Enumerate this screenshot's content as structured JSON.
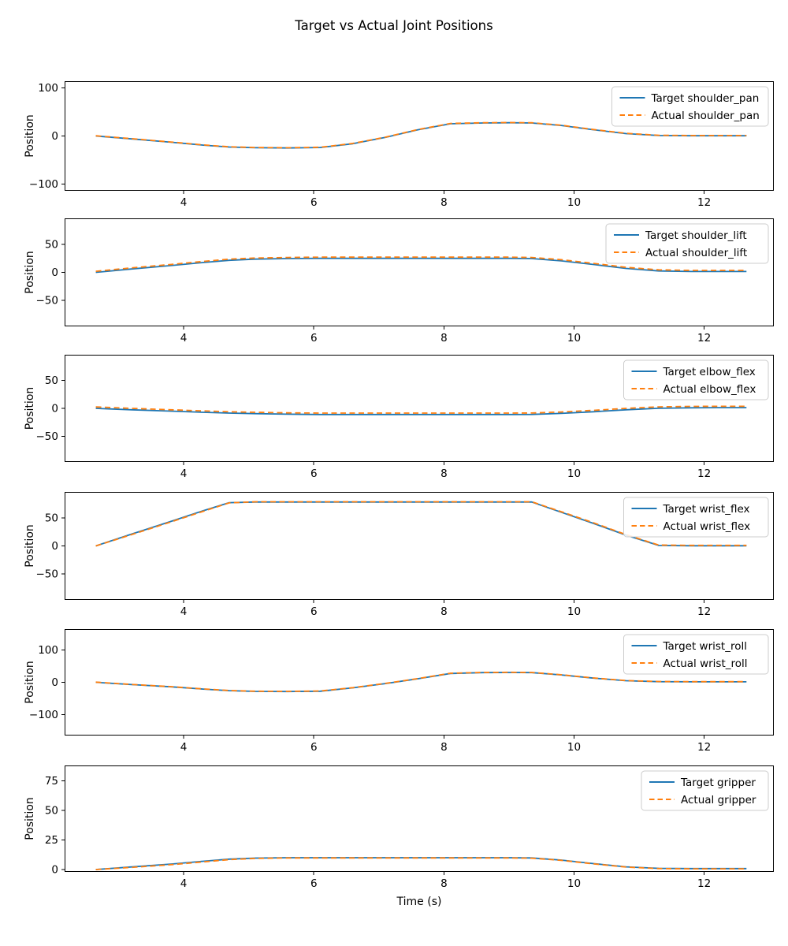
{
  "figure": {
    "title": "Target vs Actual Joint Positions",
    "xlabel": "Time (s)",
    "ylabel": "Position"
  },
  "chart_data": [
    {
      "type": "line",
      "joint": "shoulder_pan",
      "ylabel": "Position",
      "xlim": [
        2.17,
        13.07
      ],
      "ylim": [
        -114,
        114
      ],
      "xticks": [
        4,
        6,
        8,
        10,
        12
      ],
      "xticklabels": [
        "4",
        "6",
        "8",
        "10",
        "12"
      ],
      "yticks": [
        -100,
        0,
        100
      ],
      "yticklabels": [
        "−100",
        "0",
        "100"
      ],
      "legend_position": "upper right",
      "grid": false,
      "x": [
        2.65,
        3.2,
        3.8,
        4.3,
        4.7,
        5.1,
        5.6,
        6.1,
        6.6,
        7.1,
        7.6,
        8.1,
        8.6,
        9.0,
        9.35,
        9.8,
        10.3,
        10.8,
        11.3,
        11.8,
        12.2,
        12.65
      ],
      "series": [
        {
          "name": "Target shoulder_pan",
          "style": "solid",
          "color": "#1f77b4",
          "y": [
            0,
            -6,
            -13,
            -19,
            -23,
            -24.5,
            -25,
            -24,
            -16,
            -3,
            13,
            25.5,
            27,
            27.5,
            27,
            22,
            13,
            5,
            1,
            0.5,
            0.5,
            0.5
          ]
        },
        {
          "name": "Actual shoulder_pan",
          "style": "dashed",
          "color": "#ff7f0e",
          "y": [
            0.5,
            -5.5,
            -12.5,
            -18.5,
            -22.5,
            -24,
            -24.5,
            -23.5,
            -15.5,
            -2.5,
            13.5,
            26,
            27.5,
            28,
            27.5,
            22.5,
            13.5,
            5.5,
            1.5,
            1,
            1,
            1
          ]
        }
      ]
    },
    {
      "type": "line",
      "joint": "shoulder_lift",
      "ylabel": "Position",
      "xlim": [
        2.17,
        13.07
      ],
      "ylim": [
        -96,
        96
      ],
      "xticks": [
        4,
        6,
        8,
        10,
        12
      ],
      "xticklabels": [
        "4",
        "6",
        "8",
        "10",
        "12"
      ],
      "yticks": [
        -50,
        0,
        50
      ],
      "yticklabels": [
        "−50",
        "0",
        "50"
      ],
      "legend_position": "upper right",
      "grid": false,
      "x": [
        2.65,
        3.2,
        3.8,
        4.3,
        4.7,
        5.1,
        5.6,
        6.1,
        6.6,
        7.1,
        7.6,
        8.1,
        8.6,
        9.0,
        9.35,
        9.8,
        10.3,
        10.8,
        11.3,
        11.8,
        12.2,
        12.65
      ],
      "series": [
        {
          "name": "Target shoulder_lift",
          "style": "solid",
          "color": "#1f77b4",
          "y": [
            0,
            6,
            12,
            17.5,
            21.5,
            23.5,
            24.5,
            25,
            25,
            25,
            25,
            25,
            25,
            25,
            24.5,
            20.5,
            14,
            7,
            2.5,
            1.5,
            1.5,
            1.5
          ]
        },
        {
          "name": "Actual shoulder_lift",
          "style": "dashed",
          "color": "#ff7f0e",
          "y": [
            2,
            8,
            14,
            19.5,
            23.5,
            25.5,
            26.5,
            27,
            27,
            27,
            27,
            27,
            27,
            27,
            26.5,
            22.5,
            16,
            9,
            4.5,
            3.5,
            3.5,
            3.5
          ]
        }
      ]
    },
    {
      "type": "line",
      "joint": "elbow_flex",
      "ylabel": "Position",
      "xlim": [
        2.17,
        13.07
      ],
      "ylim": [
        -96,
        96
      ],
      "xticks": [
        4,
        6,
        8,
        10,
        12
      ],
      "xticklabels": [
        "4",
        "6",
        "8",
        "10",
        "12"
      ],
      "yticks": [
        -50,
        0,
        50
      ],
      "yticklabels": [
        "−50",
        "0",
        "50"
      ],
      "legend_position": "upper right",
      "grid": false,
      "x": [
        2.65,
        3.2,
        3.8,
        4.3,
        4.7,
        5.1,
        5.6,
        6.1,
        6.6,
        7.1,
        7.6,
        8.1,
        8.6,
        9.0,
        9.35,
        9.8,
        10.3,
        10.8,
        11.3,
        11.8,
        12.2,
        12.65
      ],
      "series": [
        {
          "name": "Target elbow_flex",
          "style": "solid",
          "color": "#1f77b4",
          "y": [
            0,
            -2.5,
            -5,
            -7,
            -8.5,
            -9.5,
            -10.5,
            -11,
            -11,
            -11,
            -11,
            -11,
            -11,
            -11,
            -10.8,
            -9,
            -6,
            -2.5,
            0.2,
            1,
            1.2,
            1.2
          ]
        },
        {
          "name": "Actual elbow_flex",
          "style": "dashed",
          "color": "#ff7f0e",
          "y": [
            2.5,
            0,
            -2.5,
            -4.5,
            -6,
            -7,
            -8,
            -8.5,
            -8.5,
            -8.5,
            -8.5,
            -8.5,
            -8.5,
            -8.5,
            -8.3,
            -6.5,
            -3.5,
            0,
            2.7,
            3.5,
            3.7,
            3.7
          ]
        }
      ]
    },
    {
      "type": "line",
      "joint": "wrist_flex",
      "ylabel": "Position",
      "xlim": [
        2.17,
        13.07
      ],
      "ylim": [
        -96,
        96
      ],
      "xticks": [
        4,
        6,
        8,
        10,
        12
      ],
      "xticklabels": [
        "4",
        "6",
        "8",
        "10",
        "12"
      ],
      "yticks": [
        -50,
        0,
        50
      ],
      "yticklabels": [
        "−50",
        "0",
        "50"
      ],
      "legend_position": "upper right",
      "grid": false,
      "x": [
        2.65,
        3.2,
        3.8,
        4.3,
        4.7,
        5.1,
        5.6,
        6.1,
        6.6,
        7.1,
        7.6,
        8.1,
        8.6,
        9.0,
        9.35,
        9.8,
        10.3,
        10.8,
        11.3,
        11.8,
        12.2,
        12.65
      ],
      "series": [
        {
          "name": "Target wrist_flex",
          "style": "solid",
          "color": "#1f77b4",
          "y": [
            0,
            21,
            43.5,
            62.5,
            77,
            78,
            78,
            78,
            78,
            78,
            78,
            78,
            78,
            78,
            78,
            60,
            40,
            19,
            0.8,
            0.3,
            0.3,
            0.3
          ]
        },
        {
          "name": "Actual wrist_flex",
          "style": "dashed",
          "color": "#ff7f0e",
          "y": [
            0,
            20,
            42.5,
            61.5,
            76.5,
            78.5,
            78.5,
            78.5,
            78.5,
            78.5,
            78.5,
            78.5,
            78.5,
            78.5,
            78.5,
            61,
            41,
            20,
            1.5,
            1,
            1,
            1
          ]
        }
      ]
    },
    {
      "type": "line",
      "joint": "wrist_roll",
      "ylabel": "Position",
      "xlim": [
        2.17,
        13.07
      ],
      "ylim": [
        -165,
        165
      ],
      "xticks": [
        4,
        6,
        8,
        10,
        12
      ],
      "xticklabels": [
        "4",
        "6",
        "8",
        "10",
        "12"
      ],
      "yticks": [
        -100,
        0,
        100
      ],
      "yticklabels": [
        "−100",
        "0",
        "100"
      ],
      "legend_position": "upper right",
      "grid": false,
      "x": [
        2.65,
        3.2,
        3.8,
        4.3,
        4.7,
        5.1,
        5.6,
        6.1,
        6.6,
        7.1,
        7.6,
        8.1,
        8.6,
        9.0,
        9.35,
        9.8,
        10.3,
        10.8,
        11.3,
        11.8,
        12.2,
        12.65
      ],
      "series": [
        {
          "name": "Target wrist_roll",
          "style": "solid",
          "color": "#1f77b4",
          "y": [
            0,
            -7,
            -14,
            -21,
            -26,
            -28,
            -28.5,
            -27.5,
            -17,
            -4,
            11,
            27.5,
            30,
            30.5,
            30,
            23,
            13,
            5,
            2,
            1.5,
            1.5,
            1.5
          ]
        },
        {
          "name": "Actual wrist_roll",
          "style": "dashed",
          "color": "#ff7f0e",
          "y": [
            0.5,
            -6.5,
            -13.5,
            -20.5,
            -25.5,
            -27.5,
            -28,
            -27,
            -16.5,
            -3.5,
            11.5,
            28,
            30.5,
            31,
            30.5,
            23.5,
            13.5,
            5.5,
            2.5,
            2,
            2,
            2
          ]
        }
      ]
    },
    {
      "type": "line",
      "joint": "gripper",
      "ylabel": "Position",
      "xlim": [
        2.17,
        13.07
      ],
      "ylim": [
        -2,
        88
      ],
      "xticks": [
        4,
        6,
        8,
        10,
        12
      ],
      "xticklabels": [
        "4",
        "6",
        "8",
        "10",
        "12"
      ],
      "yticks": [
        0,
        25,
        50,
        75
      ],
      "yticklabels": [
        "0",
        "25",
        "50",
        "75"
      ],
      "legend_position": "upper right",
      "grid": false,
      "x": [
        2.65,
        3.2,
        3.8,
        4.3,
        4.7,
        5.1,
        5.6,
        6.1,
        6.6,
        7.1,
        7.6,
        8.1,
        8.6,
        9.0,
        9.35,
        9.8,
        10.3,
        10.8,
        11.3,
        11.8,
        12.2,
        12.65
      ],
      "series": [
        {
          "name": "Target gripper",
          "style": "solid",
          "color": "#1f77b4",
          "y": [
            0,
            2.2,
            4.6,
            7,
            8.8,
            9.7,
            10,
            10,
            10,
            10,
            10,
            10,
            10,
            10,
            9.8,
            8,
            5,
            2.3,
            1,
            0.8,
            0.8,
            0.8
          ]
        },
        {
          "name": "Actual gripper",
          "style": "dashed",
          "color": "#ff7f0e",
          "y": [
            0,
            1.8,
            4.1,
            6.5,
            8.4,
            9.4,
            9.8,
            9.8,
            9.8,
            9.8,
            9.8,
            9.8,
            9.8,
            9.8,
            9.6,
            7.8,
            4.8,
            2.1,
            0.8,
            0.6,
            0.6,
            0.6
          ]
        }
      ]
    }
  ]
}
